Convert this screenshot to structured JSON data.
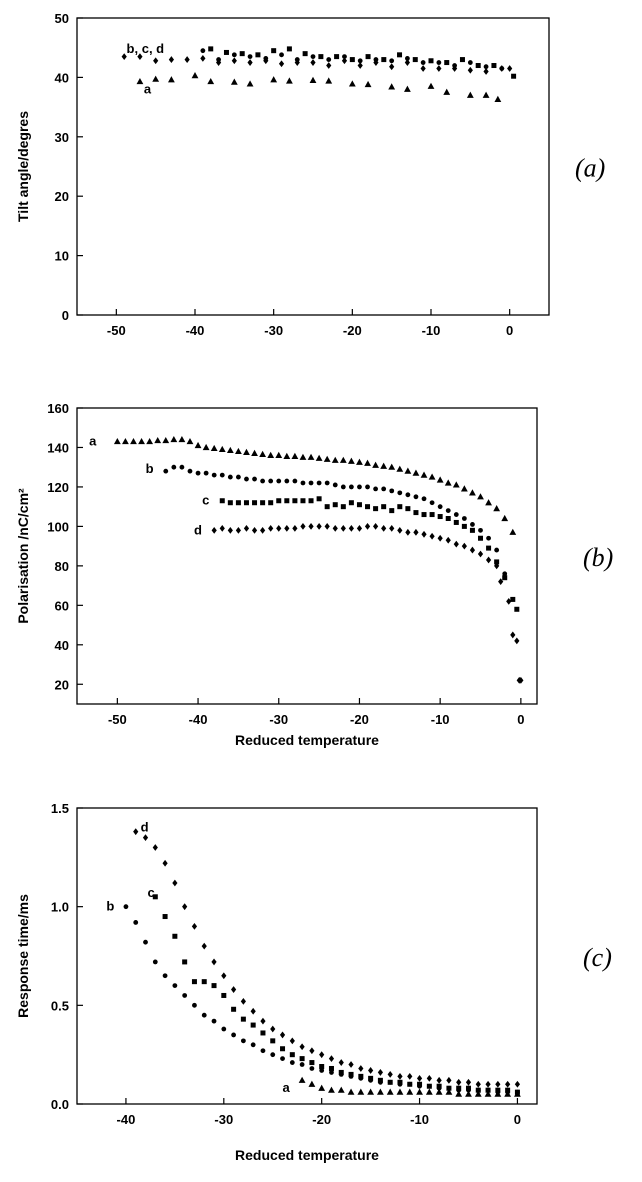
{
  "chart_data": [
    {
      "type": "scatter",
      "panel_label": "(a)",
      "xlabel": "",
      "ylabel": "Tilt angle/degres",
      "xlim": [
        -55,
        5
      ],
      "ylim": [
        0,
        50
      ],
      "xticks": [
        -50,
        -40,
        -30,
        -20,
        -10,
        0
      ],
      "yticks": [
        0,
        10,
        20,
        30,
        40,
        50
      ],
      "series": [
        {
          "label": "a",
          "marker": "triangle",
          "x": [
            -47,
            -45,
            -43,
            -40,
            -38,
            -35,
            -33,
            -30,
            -28,
            -25,
            -23,
            -20,
            -18,
            -15,
            -13,
            -10,
            -8,
            -5,
            -3,
            -1.5
          ],
          "y": [
            39.3,
            39.7,
            39.6,
            40.3,
            39.3,
            39.2,
            38.9,
            39.6,
            39.4,
            39.5,
            39.4,
            38.9,
            38.8,
            38.4,
            38.0,
            38.5,
            37.5,
            37.0,
            37.0,
            36.3
          ]
        },
        {
          "label": "",
          "marker": "diamond",
          "x": [
            -49,
            -47,
            -45,
            -43,
            -41,
            -39,
            -37,
            -35,
            -33,
            -31,
            -29,
            -27,
            -25,
            -23,
            -21,
            -19,
            -17,
            -15,
            -13,
            -11,
            -9,
            -7,
            -5,
            -3,
            -1,
            0
          ],
          "y": [
            43.5,
            43.5,
            42.8,
            43.0,
            43.0,
            43.2,
            42.5,
            42.8,
            42.5,
            42.8,
            42.3,
            42.5,
            42.5,
            42.0,
            42.8,
            42.0,
            42.5,
            41.8,
            42.5,
            41.5,
            41.5,
            41.5,
            41.2,
            41.0,
            41.5,
            41.5
          ]
        },
        {
          "label": "",
          "marker": "square",
          "x": [
            -38,
            -36,
            -34,
            -32,
            -30,
            -28,
            -26,
            -24,
            -22,
            -20,
            -18,
            -16,
            -14,
            -12,
            -10,
            -8,
            -6,
            -4,
            -2,
            0.5
          ],
          "y": [
            44.8,
            44.2,
            44.0,
            43.8,
            44.5,
            44.8,
            44.0,
            43.5,
            43.5,
            43.0,
            43.5,
            43.0,
            43.8,
            43.0,
            42.8,
            42.5,
            43.0,
            42.0,
            42.0,
            40.2
          ]
        },
        {
          "label": "",
          "marker": "dot",
          "x": [
            -39,
            -37,
            -35,
            -33,
            -31,
            -29,
            -27,
            -25,
            -23,
            -21,
            -19,
            -17,
            -15,
            -13,
            -11,
            -9,
            -7,
            -5,
            -3,
            -1
          ],
          "y": [
            44.5,
            43.0,
            43.8,
            43.5,
            43.2,
            43.8,
            43.0,
            43.5,
            43.0,
            43.5,
            42.8,
            43.0,
            42.8,
            43.2,
            42.5,
            42.5,
            42.0,
            42.5,
            41.8,
            41.5
          ]
        }
      ],
      "annotations": [
        {
          "text": "b, c, d",
          "x": -48.7,
          "y": 44.8
        },
        {
          "text": "a",
          "x": -46.5,
          "y": 38.0
        }
      ]
    },
    {
      "type": "scatter",
      "panel_label": "(b)",
      "xlabel": "Reduced temperature",
      "ylabel": "Polarisation /nC/cm²",
      "xlim": [
        -55,
        2
      ],
      "ylim": [
        10,
        160
      ],
      "xticks": [
        -50,
        -40,
        -30,
        -20,
        -10,
        0
      ],
      "yticks": [
        20,
        40,
        60,
        80,
        100,
        120,
        140,
        160
      ],
      "series": [
        {
          "label": "a",
          "marker": "triangle",
          "x": [
            -50,
            -49,
            -48,
            -47,
            -46,
            -45,
            -44,
            -43,
            -42,
            -41,
            -40,
            -39,
            -38,
            -37,
            -36,
            -35,
            -34,
            -33,
            -32,
            -31,
            -30,
            -29,
            -28,
            -27,
            -26,
            -25,
            -24,
            -23,
            -22,
            -21,
            -20,
            -19,
            -18,
            -17,
            -16,
            -15,
            -14,
            -13,
            -12,
            -11,
            -10,
            -9,
            -8,
            -7,
            -6,
            -5,
            -4,
            -3,
            -2,
            -1
          ],
          "y": [
            143,
            143,
            143,
            143,
            143,
            143.5,
            143.5,
            144,
            144,
            143,
            141,
            140,
            139.5,
            139,
            138.5,
            138,
            137.5,
            137,
            136.5,
            136,
            136,
            135.5,
            135.5,
            135,
            135,
            134.5,
            134,
            133.5,
            133.5,
            133,
            132.5,
            132,
            131,
            130.5,
            130,
            129,
            128,
            127,
            126,
            125,
            123.5,
            122,
            121,
            119,
            117,
            115,
            112,
            109,
            104,
            97
          ]
        },
        {
          "label": "b",
          "marker": "dot",
          "x": [
            -44,
            -43,
            -42,
            -41,
            -40,
            -39,
            -38,
            -37,
            -36,
            -35,
            -34,
            -33,
            -32,
            -31,
            -30,
            -29,
            -28,
            -27,
            -26,
            -25,
            -24,
            -23,
            -22,
            -21,
            -20,
            -19,
            -18,
            -17,
            -16,
            -15,
            -14,
            -13,
            -12,
            -11,
            -10,
            -9,
            -8,
            -7,
            -6,
            -5,
            -4,
            -3,
            -2
          ],
          "y": [
            128,
            130,
            130,
            128,
            127,
            127,
            126,
            126,
            125,
            125,
            124,
            124,
            123,
            123,
            123,
            123,
            123,
            122,
            122,
            122,
            122,
            121,
            120,
            120,
            120,
            120,
            119,
            119,
            118,
            117,
            116,
            115,
            114,
            112,
            110,
            108,
            106,
            104,
            101,
            98,
            94,
            88,
            76
          ]
        },
        {
          "label": "c",
          "marker": "square",
          "x": [
            -37,
            -36,
            -35,
            -34,
            -33,
            -32,
            -31,
            -30,
            -29,
            -28,
            -27,
            -26,
            -25,
            -24,
            -23,
            -22,
            -21,
            -20,
            -19,
            -18,
            -17,
            -16,
            -15,
            -14,
            -13,
            -12,
            -11,
            -10,
            -9,
            -8,
            -7,
            -6,
            -5,
            -4,
            -3,
            -2,
            -1,
            -0.5
          ],
          "y": [
            113,
            112,
            112,
            112,
            112,
            112,
            112,
            113,
            113,
            113,
            113,
            113,
            114,
            110,
            111,
            110,
            112,
            111,
            110,
            109,
            110,
            108,
            110,
            109,
            107,
            106,
            106,
            105,
            104,
            102,
            100,
            98,
            94,
            89,
            82,
            74,
            63,
            58
          ]
        },
        {
          "label": "d",
          "marker": "diamond",
          "x": [
            -38,
            -37,
            -36,
            -35,
            -34,
            -33,
            -32,
            -31,
            -30,
            -29,
            -28,
            -27,
            -26,
            -25,
            -24,
            -23,
            -22,
            -21,
            -20,
            -19,
            -18,
            -17,
            -16,
            -15,
            -14,
            -13,
            -12,
            -11,
            -10,
            -9,
            -8,
            -7,
            -6,
            -5,
            -4,
            -3,
            -2.5,
            -1.5,
            -1,
            -0.5,
            -0.2,
            0
          ],
          "y": [
            98,
            99,
            98,
            98,
            99,
            98,
            98,
            99,
            99,
            99,
            99,
            100,
            100,
            100,
            100,
            99,
            99,
            99,
            99,
            100,
            100,
            99,
            99,
            98,
            97,
            97,
            96,
            95,
            94,
            93,
            91,
            90,
            88,
            86,
            83,
            80,
            72,
            62,
            45,
            42,
            22,
            22
          ]
        }
      ],
      "annotations": [
        {
          "text": "a",
          "x": -53.5,
          "y": 143
        },
        {
          "text": "b",
          "x": -46.5,
          "y": 129
        },
        {
          "text": "c",
          "x": -39.5,
          "y": 113
        },
        {
          "text": "d",
          "x": -40.5,
          "y": 98
        }
      ]
    },
    {
      "type": "scatter",
      "panel_label": "(c)",
      "xlabel": "Reduced temperature",
      "ylabel": "Response time/ms",
      "xlim": [
        -45,
        2
      ],
      "ylim": [
        0,
        1.5
      ],
      "xticks": [
        -40,
        -30,
        -20,
        -10,
        0
      ],
      "yticks": [
        0.0,
        0.5,
        1.0,
        1.5
      ],
      "series": [
        {
          "label": "a",
          "marker": "triangle",
          "x": [
            -22,
            -21,
            -20,
            -19,
            -18,
            -17,
            -16,
            -15,
            -14,
            -13,
            -12,
            -11,
            -10,
            -9,
            -8,
            -7,
            -6,
            -5,
            -4,
            -3,
            -2,
            -1,
            0
          ],
          "y": [
            0.12,
            0.1,
            0.08,
            0.07,
            0.07,
            0.06,
            0.06,
            0.06,
            0.06,
            0.06,
            0.06,
            0.06,
            0.06,
            0.06,
            0.06,
            0.06,
            0.05,
            0.05,
            0.05,
            0.05,
            0.05,
            0.05,
            0.05
          ]
        },
        {
          "label": "b",
          "marker": "dot",
          "x": [
            -40,
            -39,
            -38,
            -37,
            -36,
            -35,
            -34,
            -33,
            -32,
            -31,
            -30,
            -29,
            -28,
            -27,
            -26,
            -25,
            -24,
            -23,
            -22,
            -21,
            -20,
            -19,
            -18,
            -17,
            -16,
            -15,
            -14,
            -13,
            -12,
            -11,
            -10,
            -9,
            -8,
            -7,
            -6,
            -5,
            -4,
            -3,
            -2,
            -1,
            0
          ],
          "y": [
            1.0,
            0.92,
            0.82,
            0.72,
            0.65,
            0.6,
            0.55,
            0.5,
            0.45,
            0.42,
            0.38,
            0.35,
            0.32,
            0.3,
            0.27,
            0.25,
            0.23,
            0.21,
            0.2,
            0.18,
            0.17,
            0.16,
            0.15,
            0.14,
            0.13,
            0.12,
            0.11,
            0.11,
            0.1,
            0.1,
            0.09,
            0.09,
            0.08,
            0.08,
            0.07,
            0.07,
            0.07,
            0.07,
            0.06,
            0.06,
            0.06
          ]
        },
        {
          "label": "c",
          "marker": "square",
          "x": [
            -37,
            -36,
            -35,
            -34,
            -33,
            -32,
            -31,
            -30,
            -29,
            -28,
            -27,
            -26,
            -25,
            -24,
            -23,
            -22,
            -21,
            -20,
            -19,
            -18,
            -17,
            -16,
            -15,
            -14,
            -13,
            -12,
            -11,
            -10,
            -9,
            -8,
            -7,
            -6,
            -5,
            -4,
            -3,
            -2,
            -1,
            0
          ],
          "y": [
            1.05,
            0.95,
            0.85,
            0.72,
            0.62,
            0.62,
            0.6,
            0.55,
            0.48,
            0.43,
            0.4,
            0.36,
            0.32,
            0.28,
            0.25,
            0.23,
            0.21,
            0.19,
            0.18,
            0.16,
            0.15,
            0.14,
            0.13,
            0.12,
            0.11,
            0.11,
            0.1,
            0.1,
            0.09,
            0.09,
            0.08,
            0.08,
            0.08,
            0.07,
            0.07,
            0.07,
            0.07,
            0.06
          ]
        },
        {
          "label": "d",
          "marker": "diamond",
          "x": [
            -39,
            -38,
            -37,
            -36,
            -35,
            -34,
            -33,
            -32,
            -31,
            -30,
            -29,
            -28,
            -27,
            -26,
            -25,
            -24,
            -23,
            -22,
            -21,
            -20,
            -19,
            -18,
            -17,
            -16,
            -15,
            -14,
            -13,
            -12,
            -11,
            -10,
            -9,
            -8,
            -7,
            -6,
            -5,
            -4,
            -3,
            -2,
            -1,
            0
          ],
          "y": [
            1.38,
            1.35,
            1.3,
            1.22,
            1.12,
            1.0,
            0.9,
            0.8,
            0.72,
            0.65,
            0.58,
            0.52,
            0.47,
            0.42,
            0.38,
            0.35,
            0.32,
            0.29,
            0.27,
            0.25,
            0.23,
            0.21,
            0.2,
            0.18,
            0.17,
            0.16,
            0.15,
            0.14,
            0.14,
            0.13,
            0.13,
            0.12,
            0.12,
            0.11,
            0.11,
            0.1,
            0.1,
            0.1,
            0.1,
            0.1
          ]
        }
      ],
      "annotations": [
        {
          "text": "d",
          "x": -38.5,
          "y": 1.4
        },
        {
          "text": "c",
          "x": -37.8,
          "y": 1.07
        },
        {
          "text": "b",
          "x": -42.0,
          "y": 1.0
        },
        {
          "text": "a",
          "x": -24.0,
          "y": 0.08
        }
      ]
    }
  ]
}
